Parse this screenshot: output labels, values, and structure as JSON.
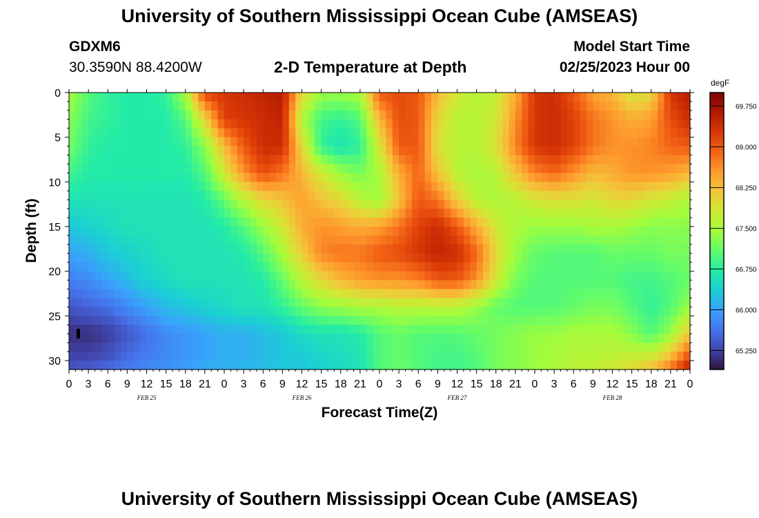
{
  "header": {
    "title": "University of Southern Mississippi Ocean Cube (AMSEAS)",
    "station": "GDXM6",
    "coordinates": "30.3590N  88.4200W",
    "subtitle": "2-D Temperature at Depth",
    "model_start_label": "Model Start Time",
    "model_start_value": "02/25/2023 Hour 00"
  },
  "footer": {
    "title": "University of Southern Mississippi Ocean Cube (AMSEAS)"
  },
  "chart_data": {
    "type": "heatmap",
    "title": "2-D Temperature at Depth",
    "xlabel": "Forecast Time(Z)",
    "ylabel": "Depth (ft)",
    "x_tick_labels": [
      "0",
      "3",
      "6",
      "9",
      "12",
      "15",
      "18",
      "21",
      "0",
      "3",
      "6",
      "9",
      "12",
      "15",
      "18",
      "21",
      "0",
      "3",
      "6",
      "9",
      "12",
      "15",
      "18",
      "21",
      "0",
      "3",
      "6",
      "9",
      "12",
      "15",
      "18",
      "21",
      "0"
    ],
    "date_labels": [
      "FEB 25",
      "FEB 26",
      "FEB 27",
      "FEB 28"
    ],
    "x_range_hours": [
      0,
      96
    ],
    "y_ticks": [
      0,
      5,
      10,
      15,
      20,
      25,
      30
    ],
    "y_range": [
      0,
      31
    ],
    "y_inverted": true,
    "colorbar": {
      "unit": "degF",
      "ticks": [
        "69.750",
        "69.000",
        "68.250",
        "67.500",
        "66.750",
        "66.000",
        "65.250"
      ],
      "min": 64.9,
      "max": 70.0,
      "colors": [
        "#30123b",
        "#4145ab",
        "#4675ed",
        "#39a2fc",
        "#1bcfd4",
        "#24eca6",
        "#61fc6c",
        "#a4fc3b",
        "#d1e834",
        "#f3c63a",
        "#fe9b2d",
        "#f36315",
        "#d93806",
        "#b11901",
        "#7a0402"
      ]
    },
    "depths_ft": [
      0,
      3,
      6,
      9,
      12,
      15,
      18,
      21,
      24,
      27,
      30,
      31
    ],
    "hours": [
      0,
      3,
      6,
      9,
      12,
      15,
      18,
      21,
      24,
      27,
      30,
      33,
      36,
      39,
      42,
      45,
      48,
      51,
      54,
      57,
      60,
      63,
      66,
      69,
      72,
      75,
      78,
      81,
      84,
      87,
      90,
      93,
      96
    ],
    "values_degF": [
      [
        67.5,
        67.0,
        66.8,
        66.7,
        66.7,
        66.8,
        67.5,
        69.2,
        69.3,
        69.4,
        69.5,
        69.6,
        68.0,
        67.4,
        67.4,
        67.5,
        69.0,
        69.1,
        69.0,
        68.3,
        67.8,
        67.6,
        67.7,
        68.4,
        69.3,
        69.4,
        69.0,
        68.5,
        68.3,
        67.8,
        68.0,
        69.3,
        69.6
      ],
      [
        67.3,
        66.9,
        66.8,
        66.7,
        66.7,
        66.7,
        67.0,
        68.0,
        69.2,
        69.3,
        69.4,
        69.5,
        67.5,
        66.9,
        66.8,
        67.0,
        68.3,
        69.1,
        69.0,
        68.0,
        67.6,
        67.6,
        67.8,
        68.6,
        69.3,
        69.4,
        69.2,
        68.8,
        68.6,
        68.4,
        68.5,
        69.1,
        69.4
      ],
      [
        67.2,
        66.8,
        66.7,
        66.7,
        66.7,
        66.7,
        66.8,
        67.3,
        68.3,
        69.0,
        69.4,
        69.4,
        68.0,
        66.8,
        66.6,
        66.8,
        67.8,
        69.0,
        69.0,
        67.9,
        67.6,
        67.6,
        67.9,
        68.7,
        69.3,
        69.4,
        69.2,
        68.8,
        68.6,
        68.6,
        68.7,
        68.9,
        69.0
      ],
      [
        66.9,
        66.7,
        66.7,
        66.7,
        66.7,
        66.7,
        66.7,
        67.0,
        67.8,
        68.6,
        69.1,
        68.8,
        68.3,
        67.8,
        67.4,
        67.2,
        67.5,
        68.4,
        68.9,
        68.2,
        67.6,
        67.5,
        67.6,
        68.2,
        68.7,
        68.9,
        68.6,
        68.3,
        68.4,
        68.6,
        68.6,
        68.5,
        68.3
      ],
      [
        66.6,
        66.6,
        66.6,
        66.6,
        66.6,
        66.6,
        66.6,
        66.7,
        67.1,
        67.6,
        68.0,
        68.2,
        68.5,
        68.2,
        68.0,
        67.6,
        67.4,
        68.2,
        69.0,
        68.8,
        68.1,
        67.6,
        67.5,
        67.6,
        67.8,
        67.9,
        67.9,
        67.8,
        68.0,
        68.0,
        67.8,
        67.7,
        67.5
      ],
      [
        66.3,
        66.4,
        66.5,
        66.6,
        66.6,
        66.6,
        66.6,
        66.6,
        66.7,
        67.0,
        67.4,
        67.8,
        68.4,
        68.6,
        68.5,
        68.4,
        68.5,
        68.8,
        69.2,
        69.4,
        69.0,
        68.4,
        67.8,
        67.5,
        67.4,
        67.4,
        67.4,
        67.5,
        67.5,
        67.4,
        67.3,
        67.3,
        67.3
      ],
      [
        66.0,
        66.1,
        66.3,
        66.4,
        66.5,
        66.6,
        66.6,
        66.6,
        66.6,
        66.7,
        67.0,
        67.5,
        68.1,
        68.7,
        68.8,
        68.8,
        69.0,
        69.1,
        69.3,
        69.5,
        69.4,
        68.9,
        68.0,
        67.4,
        67.1,
        67.0,
        67.0,
        67.0,
        67.1,
        67.1,
        67.1,
        67.2,
        67.2
      ],
      [
        65.7,
        65.8,
        66.0,
        66.2,
        66.4,
        66.5,
        66.6,
        66.6,
        66.6,
        66.6,
        66.7,
        67.1,
        67.6,
        68.0,
        68.3,
        68.5,
        68.6,
        68.6,
        68.7,
        69.0,
        69.0,
        68.6,
        67.8,
        67.2,
        67.0,
        67.0,
        67.0,
        67.0,
        67.0,
        66.9,
        66.9,
        67.0,
        67.1
      ],
      [
        65.4,
        65.5,
        65.6,
        65.8,
        66.0,
        66.2,
        66.3,
        66.4,
        66.5,
        66.6,
        66.6,
        66.8,
        67.1,
        67.3,
        67.4,
        67.5,
        67.5,
        67.6,
        67.6,
        67.6,
        67.6,
        67.4,
        67.1,
        67.0,
        67.0,
        67.0,
        67.1,
        67.2,
        67.2,
        67.0,
        66.8,
        67.0,
        67.4
      ],
      [
        65.1,
        65.1,
        65.2,
        65.4,
        65.6,
        65.8,
        65.9,
        66.0,
        66.1,
        66.1,
        66.2,
        66.3,
        66.5,
        66.6,
        66.6,
        66.7,
        67.0,
        67.1,
        67.0,
        67.0,
        67.0,
        67.1,
        67.2,
        67.3,
        67.4,
        67.4,
        67.5,
        67.5,
        67.5,
        67.3,
        67.0,
        67.4,
        68.2
      ],
      [
        65.3,
        65.3,
        65.4,
        65.6,
        65.7,
        65.8,
        65.9,
        66.0,
        66.1,
        66.1,
        66.2,
        66.3,
        66.3,
        66.4,
        66.5,
        66.6,
        67.0,
        67.1,
        67.0,
        66.9,
        66.9,
        67.0,
        67.2,
        67.3,
        67.4,
        67.5,
        67.6,
        67.6,
        67.7,
        67.8,
        67.9,
        68.4,
        69.3
      ],
      [
        65.4,
        65.5,
        65.6,
        65.7,
        65.8,
        65.9,
        66.0,
        66.1,
        66.1,
        66.2,
        66.2,
        66.3,
        66.3,
        66.4,
        66.5,
        66.6,
        67.0,
        67.1,
        67.0,
        66.9,
        66.9,
        67.0,
        67.2,
        67.3,
        67.4,
        67.5,
        67.6,
        67.7,
        67.8,
        68.0,
        68.3,
        68.9,
        69.6
      ]
    ]
  }
}
